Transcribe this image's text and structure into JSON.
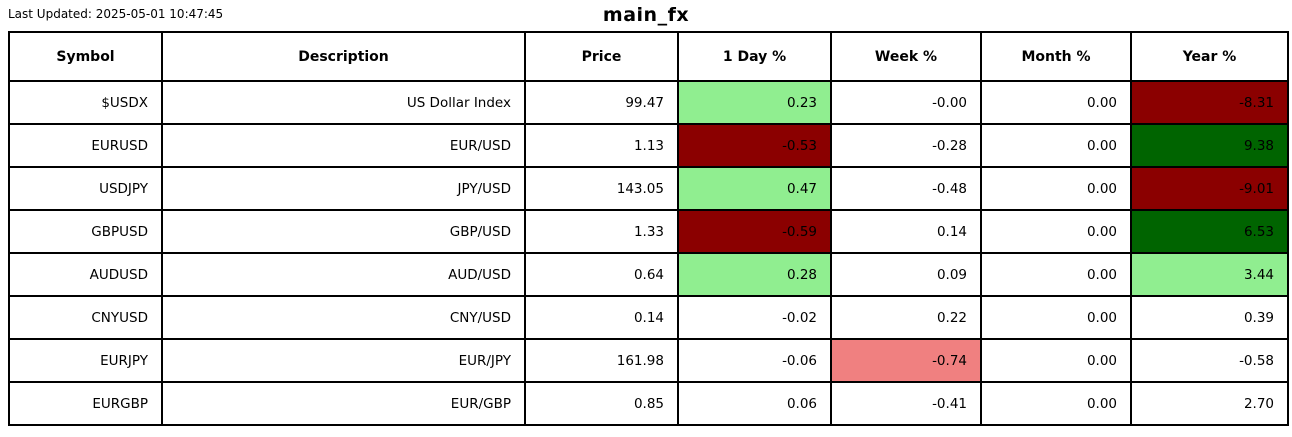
{
  "meta": {
    "last_updated": "Last Updated: 2025-05-01 10:47:45",
    "title": "main_fx"
  },
  "colors": {
    "strong_positive": "#006400",
    "light_positive": "#90EE90",
    "strong_negative": "#8B0000",
    "light_negative": "#F08080",
    "neutral": "#FFFFFF",
    "border": "#000000"
  },
  "table": {
    "columns": [
      "Symbol",
      "Description",
      "Price",
      "1 Day %",
      "Week %",
      "Month %",
      "Year %"
    ],
    "rows": [
      {
        "symbol": "$USDX",
        "description": "US Dollar Index",
        "price": "99.47",
        "day": {
          "value": "0.23",
          "bg": "#90EE90"
        },
        "week": {
          "value": "-0.00",
          "bg": "#FFFFFF"
        },
        "month": {
          "value": "0.00",
          "bg": "#FFFFFF"
        },
        "year": {
          "value": "-8.31",
          "bg": "#8B0000"
        }
      },
      {
        "symbol": "EURUSD",
        "description": "EUR/USD",
        "price": "1.13",
        "day": {
          "value": "-0.53",
          "bg": "#8B0000"
        },
        "week": {
          "value": "-0.28",
          "bg": "#FFFFFF"
        },
        "month": {
          "value": "0.00",
          "bg": "#FFFFFF"
        },
        "year": {
          "value": "9.38",
          "bg": "#006400"
        }
      },
      {
        "symbol": "USDJPY",
        "description": "JPY/USD",
        "price": "143.05",
        "day": {
          "value": "0.47",
          "bg": "#90EE90"
        },
        "week": {
          "value": "-0.48",
          "bg": "#FFFFFF"
        },
        "month": {
          "value": "0.00",
          "bg": "#FFFFFF"
        },
        "year": {
          "value": "-9.01",
          "bg": "#8B0000"
        }
      },
      {
        "symbol": "GBPUSD",
        "description": "GBP/USD",
        "price": "1.33",
        "day": {
          "value": "-0.59",
          "bg": "#8B0000"
        },
        "week": {
          "value": "0.14",
          "bg": "#FFFFFF"
        },
        "month": {
          "value": "0.00",
          "bg": "#FFFFFF"
        },
        "year": {
          "value": "6.53",
          "bg": "#006400"
        }
      },
      {
        "symbol": "AUDUSD",
        "description": "AUD/USD",
        "price": "0.64",
        "day": {
          "value": "0.28",
          "bg": "#90EE90"
        },
        "week": {
          "value": "0.09",
          "bg": "#FFFFFF"
        },
        "month": {
          "value": "0.00",
          "bg": "#FFFFFF"
        },
        "year": {
          "value": "3.44",
          "bg": "#90EE90"
        }
      },
      {
        "symbol": "CNYUSD",
        "description": "CNY/USD",
        "price": "0.14",
        "day": {
          "value": "-0.02",
          "bg": "#FFFFFF"
        },
        "week": {
          "value": "0.22",
          "bg": "#FFFFFF"
        },
        "month": {
          "value": "0.00",
          "bg": "#FFFFFF"
        },
        "year": {
          "value": "0.39",
          "bg": "#FFFFFF"
        }
      },
      {
        "symbol": "EURJPY",
        "description": "EUR/JPY",
        "price": "161.98",
        "day": {
          "value": "-0.06",
          "bg": "#FFFFFF"
        },
        "week": {
          "value": "-0.74",
          "bg": "#F08080"
        },
        "month": {
          "value": "0.00",
          "bg": "#FFFFFF"
        },
        "year": {
          "value": "-0.58",
          "bg": "#FFFFFF"
        }
      },
      {
        "symbol": "EURGBP",
        "description": "EUR/GBP",
        "price": "0.85",
        "day": {
          "value": "0.06",
          "bg": "#FFFFFF"
        },
        "week": {
          "value": "-0.41",
          "bg": "#FFFFFF"
        },
        "month": {
          "value": "0.00",
          "bg": "#FFFFFF"
        },
        "year": {
          "value": "2.70",
          "bg": "#FFFFFF"
        }
      }
    ]
  }
}
